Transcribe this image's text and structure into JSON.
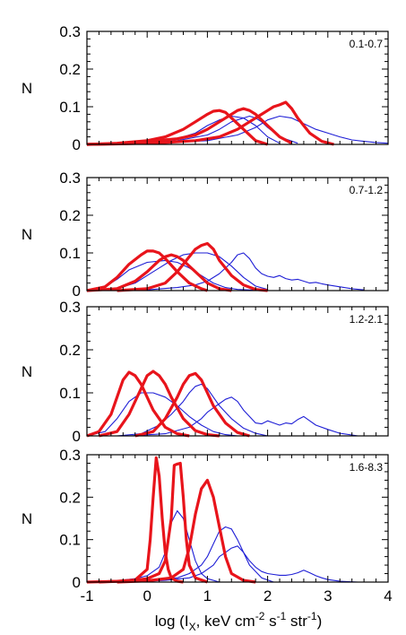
{
  "figure": {
    "xlabel_main": "log (I",
    "xlabel_sub": "X",
    "xlabel_rest": ", keV cm",
    "xlabel_sup1": "-2",
    "xlabel_s": " s",
    "xlabel_sup2": "-1",
    "xlabel_str": " str",
    "xlabel_sup3": "-1",
    "xlabel_close": ")",
    "colors": {
      "thick": "#e8141b",
      "thin": "#1f1fd6",
      "axis": "#000000"
    }
  },
  "chart_data": [
    {
      "type": "line",
      "panel_label": "0.1-0.7",
      "ylabel": "N",
      "xlim": [
        -1,
        4
      ],
      "ylim": [
        0,
        0.3
      ],
      "yticks": [
        "0",
        "0.1",
        "0.2",
        "0.3"
      ],
      "xticks": [
        "-1",
        "0",
        "1",
        "2",
        "3",
        "4"
      ],
      "series": [
        {
          "style": "thick",
          "x": [
            -1,
            -0.5,
            0,
            0.3,
            0.6,
            0.8,
            1.0,
            1.1,
            1.2,
            1.3,
            1.4,
            1.6,
            1.8,
            2.0
          ],
          "y": [
            0,
            0.003,
            0.01,
            0.02,
            0.04,
            0.06,
            0.08,
            0.088,
            0.09,
            0.085,
            0.07,
            0.04,
            0.01,
            0.0
          ]
        },
        {
          "style": "thick",
          "x": [
            -1,
            -0.5,
            0,
            0.5,
            0.8,
            1.0,
            1.2,
            1.4,
            1.5,
            1.6,
            1.7,
            1.8,
            2.0,
            2.2,
            2.4
          ],
          "y": [
            0,
            0.002,
            0.008,
            0.015,
            0.025,
            0.04,
            0.06,
            0.08,
            0.09,
            0.095,
            0.09,
            0.08,
            0.05,
            0.02,
            0.003
          ]
        },
        {
          "style": "thick",
          "x": [
            -1,
            -0.3,
            0.3,
            0.8,
            1.2,
            1.5,
            1.7,
            1.9,
            2.0,
            2.1,
            2.2,
            2.3,
            2.4,
            2.5,
            2.7,
            2.9,
            3.1
          ],
          "y": [
            0,
            0.002,
            0.005,
            0.01,
            0.02,
            0.04,
            0.06,
            0.08,
            0.09,
            0.1,
            0.105,
            0.112,
            0.095,
            0.07,
            0.03,
            0.008,
            0.0
          ]
        },
        {
          "style": "thin",
          "x": [
            -1,
            -0.5,
            0,
            0.5,
            0.8,
            1.0,
            1.2,
            1.4,
            1.6,
            1.8,
            2.0,
            2.2
          ],
          "y": [
            0,
            0.003,
            0.008,
            0.015,
            0.03,
            0.05,
            0.065,
            0.075,
            0.07,
            0.05,
            0.02,
            0.003
          ]
        },
        {
          "style": "thin",
          "x": [
            -1,
            0,
            0.5,
            1.0,
            1.2,
            1.4,
            1.6,
            1.7,
            1.8,
            1.9,
            2.0,
            2.2,
            2.5
          ],
          "y": [
            0,
            0.004,
            0.01,
            0.025,
            0.04,
            0.06,
            0.07,
            0.075,
            0.07,
            0.06,
            0.045,
            0.02,
            0.003
          ]
        },
        {
          "style": "thin",
          "x": [
            -1,
            0,
            1.0,
            1.5,
            1.8,
            2.0,
            2.2,
            2.4,
            2.6,
            2.8,
            3.0,
            3.2,
            3.4,
            3.6,
            3.8,
            4.0
          ],
          "y": [
            0,
            0.002,
            0.01,
            0.025,
            0.045,
            0.065,
            0.075,
            0.07,
            0.055,
            0.04,
            0.03,
            0.02,
            0.012,
            0.008,
            0.005,
            0.003
          ]
        }
      ]
    },
    {
      "type": "line",
      "panel_label": "0.7-1.2",
      "ylabel": "N",
      "xlim": [
        -1,
        4
      ],
      "ylim": [
        0,
        0.3
      ],
      "yticks": [
        "0",
        "0.1",
        "0.2",
        "0.3"
      ],
      "xticks": [
        "-1",
        "0",
        "1",
        "2",
        "3",
        "4"
      ],
      "series": [
        {
          "style": "thick",
          "x": [
            -1.0,
            -0.7,
            -0.5,
            -0.3,
            -0.1,
            0.0,
            0.1,
            0.2,
            0.3,
            0.5,
            0.7,
            0.9,
            1.0
          ],
          "y": [
            0,
            0.01,
            0.035,
            0.07,
            0.095,
            0.105,
            0.105,
            0.1,
            0.085,
            0.05,
            0.02,
            0.005,
            0
          ]
        },
        {
          "style": "thick",
          "x": [
            -1.0,
            -0.5,
            -0.2,
            0.0,
            0.2,
            0.3,
            0.4,
            0.5,
            0.6,
            0.8,
            1.0,
            1.2,
            1.4
          ],
          "y": [
            0,
            0.005,
            0.025,
            0.05,
            0.08,
            0.09,
            0.095,
            0.09,
            0.08,
            0.05,
            0.02,
            0.005,
            0
          ]
        },
        {
          "style": "thick",
          "x": [
            -0.5,
            0.0,
            0.3,
            0.5,
            0.7,
            0.8,
            0.9,
            1.0,
            1.1,
            1.2,
            1.4,
            1.6,
            1.8,
            2.0
          ],
          "y": [
            0,
            0.005,
            0.02,
            0.05,
            0.09,
            0.11,
            0.12,
            0.125,
            0.11,
            0.08,
            0.04,
            0.015,
            0.003,
            0
          ]
        },
        {
          "style": "thin",
          "x": [
            -1.0,
            -0.7,
            -0.5,
            -0.3,
            0.0,
            0.3,
            0.5,
            0.7,
            0.9,
            1.1,
            1.3,
            1.5,
            1.8,
            2.0
          ],
          "y": [
            0,
            0.01,
            0.03,
            0.055,
            0.075,
            0.08,
            0.075,
            0.06,
            0.04,
            0.02,
            0.008,
            0.003,
            0.001,
            0
          ]
        },
        {
          "style": "thin",
          "x": [
            -1.0,
            -0.5,
            -0.2,
            0.0,
            0.2,
            0.4,
            0.6,
            0.8,
            1.0,
            1.2,
            1.4,
            1.6,
            1.8,
            2.0
          ],
          "y": [
            0,
            0.005,
            0.02,
            0.04,
            0.06,
            0.08,
            0.095,
            0.1,
            0.1,
            0.09,
            0.065,
            0.035,
            0.012,
            0.003
          ]
        },
        {
          "style": "thin",
          "x": [
            -0.5,
            0.0,
            0.5,
            0.8,
            1.0,
            1.2,
            1.4,
            1.5,
            1.6,
            1.7,
            1.8,
            1.9,
            2.0,
            2.1,
            2.2,
            2.3,
            2.4,
            2.5,
            2.6,
            2.7,
            2.8,
            2.9,
            3.0,
            3.2,
            3.4,
            3.6
          ],
          "y": [
            0,
            0.002,
            0.008,
            0.015,
            0.025,
            0.045,
            0.075,
            0.095,
            0.1,
            0.085,
            0.06,
            0.045,
            0.038,
            0.035,
            0.04,
            0.032,
            0.028,
            0.03,
            0.025,
            0.02,
            0.022,
            0.018,
            0.015,
            0.01,
            0.005,
            0.002
          ]
        }
      ]
    },
    {
      "type": "line",
      "panel_label": "1.2-2.1",
      "ylabel": "N",
      "xlim": [
        -1,
        4
      ],
      "ylim": [
        0,
        0.3
      ],
      "yticks": [
        "0",
        "0.1",
        "0.2",
        "0.3"
      ],
      "xticks": [
        "-1",
        "0",
        "1",
        "2",
        "3",
        "4"
      ],
      "series": [
        {
          "style": "thick",
          "x": [
            -1.0,
            -0.8,
            -0.6,
            -0.5,
            -0.4,
            -0.3,
            -0.2,
            -0.1,
            0.0,
            0.1,
            0.3,
            0.5,
            0.7
          ],
          "y": [
            0,
            0.01,
            0.05,
            0.09,
            0.13,
            0.148,
            0.14,
            0.12,
            0.09,
            0.06,
            0.02,
            0.005,
            0
          ]
        },
        {
          "style": "thick",
          "x": [
            -0.8,
            -0.5,
            -0.3,
            -0.1,
            0.0,
            0.1,
            0.2,
            0.3,
            0.4,
            0.6,
            0.8,
            1.0,
            1.2
          ],
          "y": [
            0,
            0.01,
            0.05,
            0.11,
            0.14,
            0.15,
            0.14,
            0.12,
            0.09,
            0.04,
            0.012,
            0.003,
            0
          ]
        },
        {
          "style": "thick",
          "x": [
            -0.2,
            0.1,
            0.3,
            0.5,
            0.6,
            0.7,
            0.8,
            0.9,
            1.0,
            1.1,
            1.3,
            1.5,
            1.7
          ],
          "y": [
            0,
            0.01,
            0.04,
            0.09,
            0.12,
            0.14,
            0.145,
            0.13,
            0.1,
            0.07,
            0.03,
            0.008,
            0
          ]
        },
        {
          "style": "thin",
          "x": [
            -1.0,
            -0.7,
            -0.5,
            -0.3,
            -0.1,
            0.1,
            0.3,
            0.5,
            0.7,
            0.9,
            1.1,
            1.3,
            1.5
          ],
          "y": [
            0,
            0.01,
            0.04,
            0.08,
            0.1,
            0.1,
            0.09,
            0.07,
            0.045,
            0.025,
            0.01,
            0.003,
            0
          ]
        },
        {
          "style": "thin",
          "x": [
            -0.5,
            -0.1,
            0.2,
            0.4,
            0.6,
            0.7,
            0.8,
            0.9,
            1.0,
            1.1,
            1.2,
            1.4,
            1.6,
            1.8,
            2.0
          ],
          "y": [
            0,
            0.005,
            0.025,
            0.05,
            0.08,
            0.1,
            0.115,
            0.12,
            0.11,
            0.09,
            0.07,
            0.04,
            0.018,
            0.006,
            0
          ]
        },
        {
          "style": "thin",
          "x": [
            -0.3,
            0.3,
            0.7,
            0.9,
            1.0,
            1.1,
            1.2,
            1.3,
            1.4,
            1.5,
            1.6,
            1.7,
            1.8,
            1.9,
            2.0,
            2.1,
            2.2,
            2.3,
            2.4,
            2.5,
            2.6,
            2.7,
            2.8,
            3.0,
            3.2,
            3.5
          ],
          "y": [
            0,
            0.005,
            0.02,
            0.04,
            0.055,
            0.065,
            0.075,
            0.085,
            0.09,
            0.08,
            0.06,
            0.045,
            0.03,
            0.028,
            0.035,
            0.03,
            0.025,
            0.03,
            0.028,
            0.038,
            0.045,
            0.035,
            0.025,
            0.015,
            0.006,
            0
          ]
        }
      ]
    },
    {
      "type": "line",
      "panel_label": "1.6-8.3",
      "ylabel": "N",
      "xlim": [
        -1,
        4
      ],
      "ylim": [
        0,
        0.3
      ],
      "yticks": [
        "0",
        "0.1",
        "0.2",
        "0.3"
      ],
      "xticks": [
        "-1",
        "0",
        "1",
        "2",
        "3",
        "4"
      ],
      "series": [
        {
          "style": "thick",
          "x": [
            -1.0,
            -0.5,
            -0.2,
            0.0,
            0.05,
            0.1,
            0.15,
            0.2,
            0.25,
            0.3,
            0.35,
            0.4,
            0.5,
            0.6
          ],
          "y": [
            0,
            0.002,
            0.005,
            0.03,
            0.1,
            0.2,
            0.293,
            0.25,
            0.15,
            0.07,
            0.03,
            0.01,
            0.002,
            0
          ]
        },
        {
          "style": "thick",
          "x": [
            -0.8,
            -0.3,
            0.0,
            0.2,
            0.3,
            0.4,
            0.45,
            0.5,
            0.55,
            0.6,
            0.65,
            0.7,
            0.8,
            1.0
          ],
          "y": [
            0,
            0.003,
            0.008,
            0.02,
            0.05,
            0.15,
            0.275,
            0.278,
            0.28,
            0.2,
            0.1,
            0.04,
            0.01,
            0
          ]
        },
        {
          "style": "thick",
          "x": [
            -0.5,
            0.0,
            0.4,
            0.6,
            0.7,
            0.8,
            0.9,
            1.0,
            1.1,
            1.2,
            1.3,
            1.4,
            1.6,
            1.8
          ],
          "y": [
            0,
            0.003,
            0.01,
            0.03,
            0.08,
            0.16,
            0.22,
            0.24,
            0.2,
            0.13,
            0.06,
            0.02,
            0.004,
            0
          ]
        },
        {
          "style": "thin",
          "x": [
            -1.0,
            -0.5,
            -0.2,
            0.0,
            0.2,
            0.3,
            0.4,
            0.5,
            0.6,
            0.7,
            0.8,
            0.9,
            1.0,
            1.2
          ],
          "y": [
            0,
            0.003,
            0.008,
            0.015,
            0.035,
            0.07,
            0.14,
            0.168,
            0.15,
            0.1,
            0.05,
            0.02,
            0.008,
            0
          ]
        },
        {
          "style": "thin",
          "x": [
            -0.5,
            0.0,
            0.5,
            0.7,
            0.9,
            1.0,
            1.1,
            1.2,
            1.3,
            1.4,
            1.5,
            1.6,
            1.7,
            1.9,
            2.1
          ],
          "y": [
            0,
            0.003,
            0.01,
            0.02,
            0.04,
            0.06,
            0.09,
            0.12,
            0.13,
            0.125,
            0.1,
            0.07,
            0.04,
            0.01,
            0
          ]
        },
        {
          "style": "thin",
          "x": [
            -0.3,
            0.3,
            0.7,
            0.9,
            1.1,
            1.2,
            1.3,
            1.4,
            1.5,
            1.6,
            1.7,
            1.8,
            1.9,
            2.0,
            2.1,
            2.2,
            2.3,
            2.4,
            2.5,
            2.6,
            2.7,
            2.8,
            2.9,
            3.0,
            3.2,
            3.5
          ],
          "y": [
            0,
            0.004,
            0.01,
            0.02,
            0.04,
            0.06,
            0.07,
            0.08,
            0.085,
            0.07,
            0.05,
            0.035,
            0.025,
            0.02,
            0.018,
            0.016,
            0.016,
            0.018,
            0.022,
            0.028,
            0.022,
            0.015,
            0.01,
            0.006,
            0.002,
            0
          ]
        }
      ]
    }
  ]
}
